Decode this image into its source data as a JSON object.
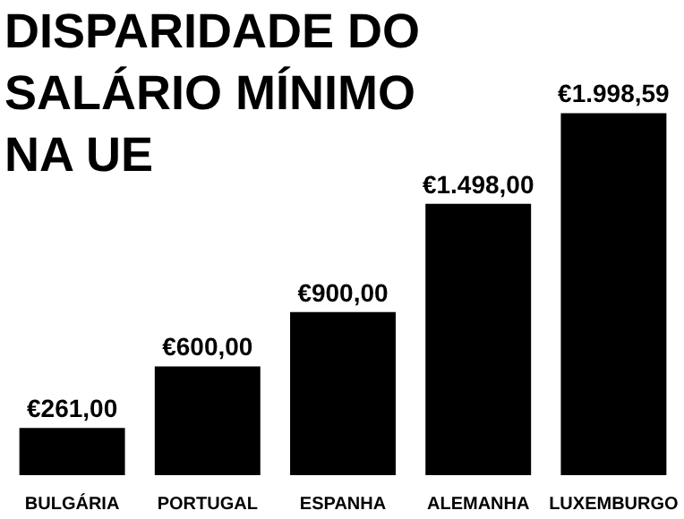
{
  "chart_data": {
    "type": "bar",
    "title": "DISPARIDADE DO\nSALÁRIO MÍNIMO\nNA UE",
    "categories": [
      "BULGÁRIA",
      "PORTUGAL",
      "ESPANHA",
      "ALEMANHA",
      "LUXEMBURGO"
    ],
    "values": [
      261,
      600,
      900,
      1498,
      1998.59
    ],
    "value_labels": [
      "€261,00",
      "€600,00",
      "€900,00",
      "€1.498,00",
      "€1.998,59"
    ],
    "color": "#000000",
    "grid": false
  }
}
